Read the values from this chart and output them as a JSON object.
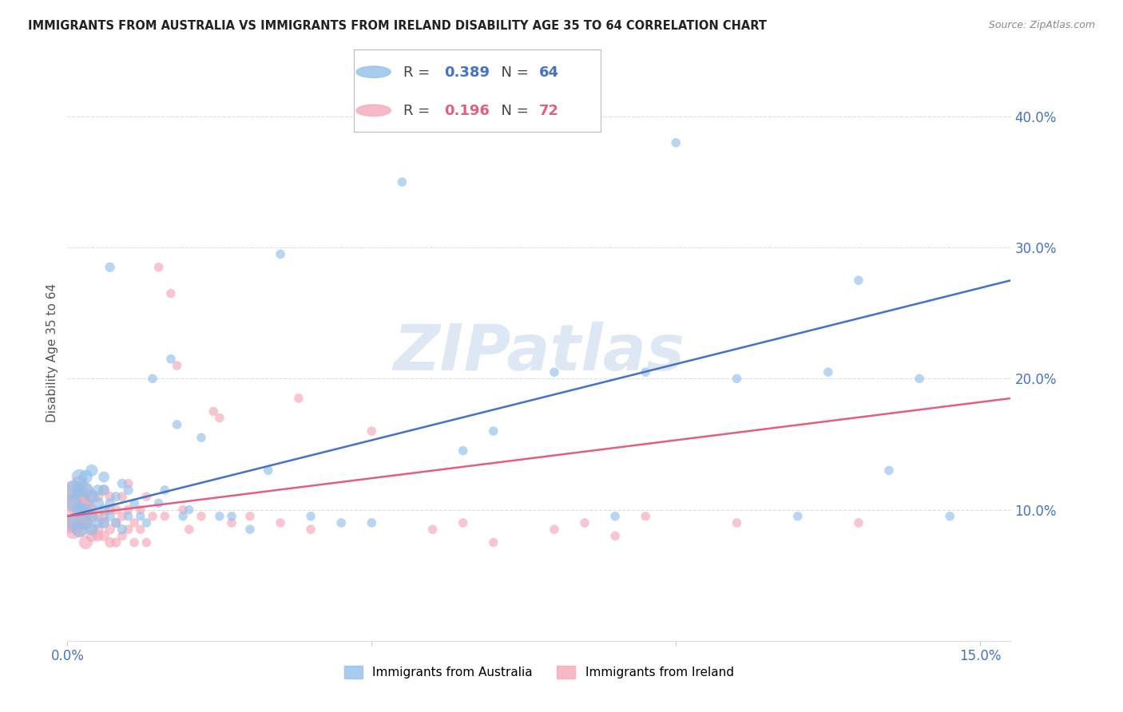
{
  "title": "IMMIGRANTS FROM AUSTRALIA VS IMMIGRANTS FROM IRELAND DISABILITY AGE 35 TO 64 CORRELATION CHART",
  "source": "Source: ZipAtlas.com",
  "ylabel": "Disability Age 35 to 64",
  "xlim": [
    0.0,
    0.155
  ],
  "ylim": [
    0.0,
    0.44
  ],
  "xtick_positions": [
    0.0,
    0.05,
    0.1,
    0.15
  ],
  "xtick_labels": [
    "0.0%",
    "",
    "",
    "15.0%"
  ],
  "ytick_positions": [
    0.1,
    0.2,
    0.3,
    0.4
  ],
  "ytick_labels": [
    "10.0%",
    "20.0%",
    "30.0%",
    "40.0%"
  ],
  "australia_color": "#92C0EA",
  "ireland_color": "#F5A8B8",
  "australia_line_color": "#4472C4",
  "ireland_line_color": "#E06080",
  "australia_R": 0.389,
  "australia_N": 64,
  "ireland_R": 0.196,
  "ireland_N": 72,
  "aus_line_x0": 0.0,
  "aus_line_y0": 0.095,
  "aus_line_x1": 0.155,
  "aus_line_y1": 0.275,
  "ire_line_x0": 0.0,
  "ire_line_y0": 0.095,
  "ire_line_x1": 0.155,
  "ire_line_y1": 0.185,
  "australia_x": [
    0.001,
    0.001,
    0.001,
    0.002,
    0.002,
    0.002,
    0.002,
    0.003,
    0.003,
    0.003,
    0.003,
    0.004,
    0.004,
    0.004,
    0.004,
    0.005,
    0.005,
    0.005,
    0.006,
    0.006,
    0.006,
    0.006,
    0.007,
    0.007,
    0.007,
    0.008,
    0.008,
    0.009,
    0.009,
    0.01,
    0.01,
    0.011,
    0.012,
    0.013,
    0.014,
    0.015,
    0.016,
    0.017,
    0.018,
    0.019,
    0.02,
    0.022,
    0.025,
    0.027,
    0.03,
    0.033,
    0.035,
    0.04,
    0.045,
    0.05,
    0.055,
    0.065,
    0.07,
    0.08,
    0.09,
    0.095,
    0.1,
    0.11,
    0.12,
    0.125,
    0.13,
    0.135,
    0.14,
    0.145
  ],
  "australia_y": [
    0.115,
    0.105,
    0.09,
    0.125,
    0.1,
    0.115,
    0.085,
    0.115,
    0.1,
    0.09,
    0.125,
    0.11,
    0.095,
    0.085,
    0.13,
    0.105,
    0.09,
    0.115,
    0.125,
    0.1,
    0.09,
    0.115,
    0.105,
    0.095,
    0.285,
    0.11,
    0.09,
    0.12,
    0.085,
    0.115,
    0.095,
    0.105,
    0.095,
    0.09,
    0.2,
    0.105,
    0.115,
    0.215,
    0.165,
    0.095,
    0.1,
    0.155,
    0.095,
    0.095,
    0.085,
    0.13,
    0.295,
    0.095,
    0.09,
    0.09,
    0.35,
    0.145,
    0.16,
    0.205,
    0.095,
    0.205,
    0.38,
    0.2,
    0.095,
    0.205,
    0.275,
    0.13,
    0.2,
    0.095
  ],
  "australia_sizes": [
    300,
    200,
    200,
    200,
    200,
    200,
    200,
    200,
    150,
    150,
    150,
    150,
    120,
    120,
    120,
    120,
    100,
    100,
    100,
    100,
    100,
    100,
    80,
    80,
    80,
    80,
    80,
    80,
    80,
    80,
    70,
    70,
    70,
    70,
    70,
    70,
    70,
    70,
    70,
    70,
    70,
    70,
    70,
    70,
    70,
    70,
    70,
    70,
    70,
    70,
    70,
    70,
    70,
    70,
    70,
    70,
    70,
    70,
    70,
    70,
    70,
    70,
    70,
    70
  ],
  "ireland_x": [
    0.0005,
    0.001,
    0.001,
    0.001,
    0.001,
    0.002,
    0.002,
    0.002,
    0.002,
    0.002,
    0.003,
    0.003,
    0.003,
    0.003,
    0.003,
    0.004,
    0.004,
    0.004,
    0.004,
    0.004,
    0.005,
    0.005,
    0.005,
    0.005,
    0.006,
    0.006,
    0.006,
    0.006,
    0.007,
    0.007,
    0.007,
    0.007,
    0.008,
    0.008,
    0.008,
    0.009,
    0.009,
    0.009,
    0.01,
    0.01,
    0.01,
    0.011,
    0.011,
    0.012,
    0.012,
    0.013,
    0.013,
    0.014,
    0.015,
    0.016,
    0.017,
    0.018,
    0.019,
    0.02,
    0.022,
    0.024,
    0.025,
    0.027,
    0.03,
    0.035,
    0.038,
    0.04,
    0.05,
    0.06,
    0.065,
    0.07,
    0.08,
    0.085,
    0.09,
    0.095,
    0.11,
    0.13
  ],
  "ireland_y": [
    0.1,
    0.105,
    0.09,
    0.085,
    0.115,
    0.095,
    0.11,
    0.085,
    0.1,
    0.12,
    0.09,
    0.105,
    0.075,
    0.09,
    0.115,
    0.095,
    0.08,
    0.11,
    0.085,
    0.1,
    0.095,
    0.08,
    0.11,
    0.085,
    0.115,
    0.09,
    0.08,
    0.095,
    0.1,
    0.075,
    0.11,
    0.085,
    0.1,
    0.09,
    0.075,
    0.095,
    0.08,
    0.11,
    0.085,
    0.1,
    0.12,
    0.09,
    0.075,
    0.085,
    0.1,
    0.11,
    0.075,
    0.095,
    0.285,
    0.095,
    0.265,
    0.21,
    0.1,
    0.085,
    0.095,
    0.175,
    0.17,
    0.09,
    0.095,
    0.09,
    0.185,
    0.085,
    0.16,
    0.085,
    0.09,
    0.075,
    0.085,
    0.09,
    0.08,
    0.095,
    0.09,
    0.09
  ],
  "ireland_sizes": [
    1800,
    300,
    300,
    300,
    300,
    200,
    200,
    200,
    200,
    200,
    150,
    150,
    150,
    150,
    150,
    120,
    120,
    120,
    120,
    120,
    100,
    100,
    100,
    100,
    90,
    90,
    90,
    90,
    85,
    85,
    85,
    85,
    80,
    80,
    80,
    75,
    75,
    75,
    75,
    75,
    75,
    70,
    70,
    70,
    70,
    70,
    70,
    70,
    70,
    70,
    70,
    70,
    70,
    70,
    70,
    70,
    70,
    70,
    70,
    70,
    70,
    70,
    70,
    70,
    70,
    70,
    70,
    70,
    70,
    70,
    70,
    70
  ],
  "watermark_text": "ZIPatlas",
  "watermark_color": "#C8D8EE",
  "background_color": "#FFFFFF",
  "grid_color": "#DDDDDD"
}
